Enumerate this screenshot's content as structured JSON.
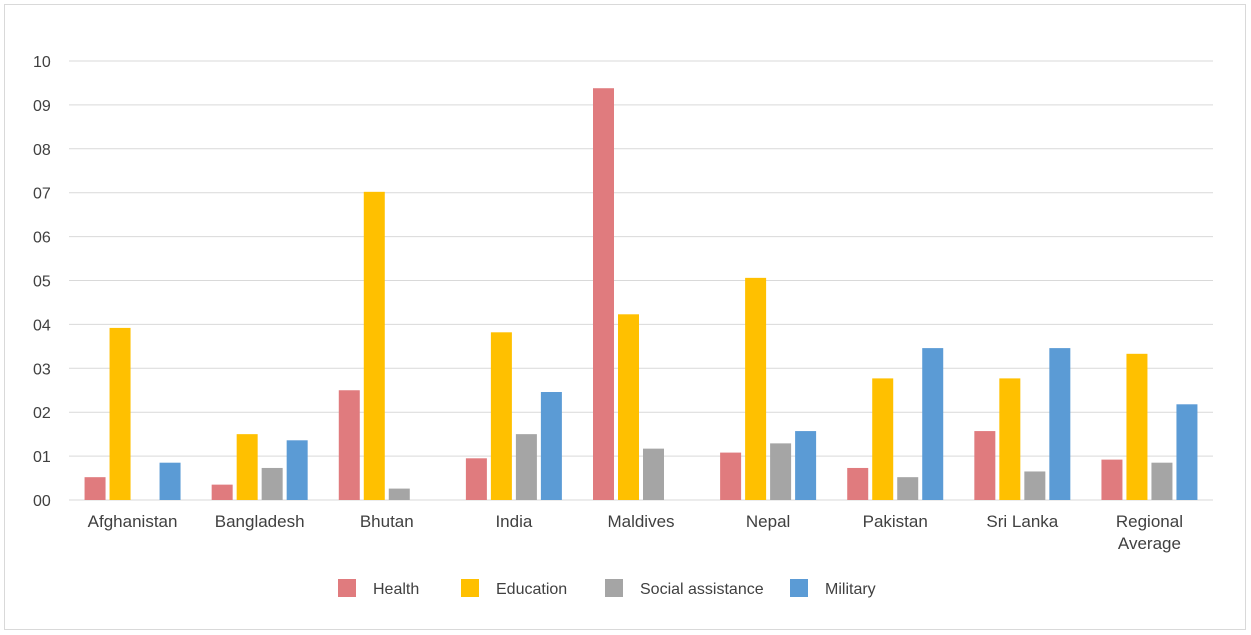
{
  "chart_data": {
    "type": "bar",
    "categories": [
      "Afghanistan",
      "Bangladesh",
      "Bhutan",
      "India",
      "Maldives",
      "Nepal",
      "Pakistan",
      "Sri Lanka",
      [
        "Regional",
        "Average"
      ]
    ],
    "y_tick_labels": [
      "00",
      "01",
      "02",
      "03",
      "04",
      "05",
      "06",
      "07",
      "08",
      "09",
      "10"
    ],
    "ylim": [
      0,
      10
    ],
    "grid": true,
    "legend_position": "bottom",
    "series": [
      {
        "name": "Health",
        "color": "#e07b7e",
        "values": [
          0.52,
          0.35,
          2.5,
          0.95,
          9.38,
          1.08,
          0.73,
          1.57,
          0.92
        ]
      },
      {
        "name": "Education",
        "color": "#ffc000",
        "values": [
          3.92,
          1.5,
          7.02,
          3.82,
          4.23,
          5.06,
          2.77,
          2.77,
          3.33
        ]
      },
      {
        "name": "Social assistance",
        "color": "#a5a5a5",
        "values": [
          null,
          0.73,
          0.26,
          1.5,
          1.17,
          1.29,
          0.52,
          0.65,
          0.85
        ]
      },
      {
        "name": "Military",
        "color": "#5b9bd5",
        "values": [
          0.85,
          1.36,
          null,
          2.46,
          null,
          1.57,
          3.46,
          3.46,
          2.18
        ]
      }
    ]
  }
}
